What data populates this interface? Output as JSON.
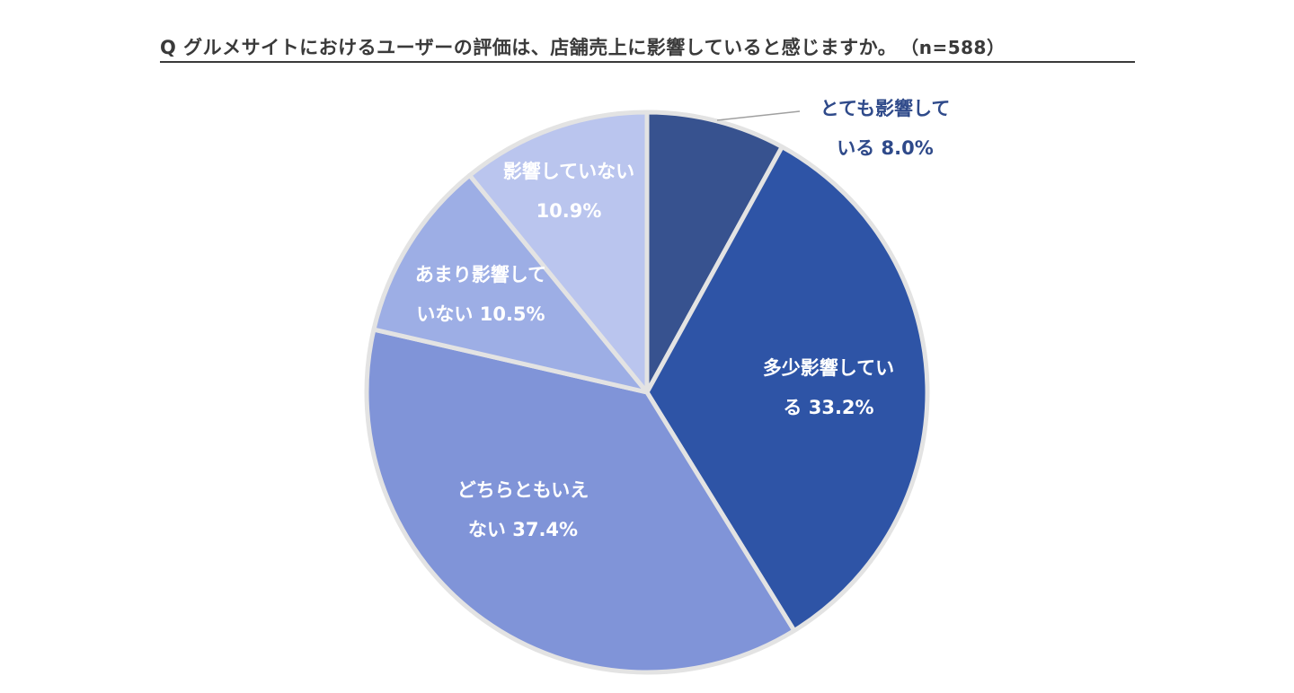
{
  "chart_data": {
    "type": "pie",
    "title": "Q グルメサイトにおけるユーザーの評価は、店舗売上に影響していると感じますか。",
    "subtitle": "（n=588）",
    "slices": [
      {
        "label_line1": "とても影響して",
        "label_line2": "いる 8.0%",
        "value": 8.0,
        "color": "#37528f",
        "label_color": "#2f4a8a"
      },
      {
        "label_line1": "多少影響してい",
        "label_line2": "る 33.2%",
        "value": 33.2,
        "color": "#2e54a6",
        "label_color": "#ffffff"
      },
      {
        "label_line1": "どちらともいえ",
        "label_line2": "ない 37.4%",
        "value": 37.4,
        "color": "#8094d8",
        "label_color": "#ffffff"
      },
      {
        "label_line1": "あまり影響して",
        "label_line2": "いない 10.5%",
        "value": 10.5,
        "color": "#9daee5",
        "label_color": "#ffffff"
      },
      {
        "label_line1": "影響していない",
        "label_line2": "10.9%",
        "value": 10.9,
        "color": "#bac5ee",
        "label_color": "#ffffff"
      }
    ]
  }
}
